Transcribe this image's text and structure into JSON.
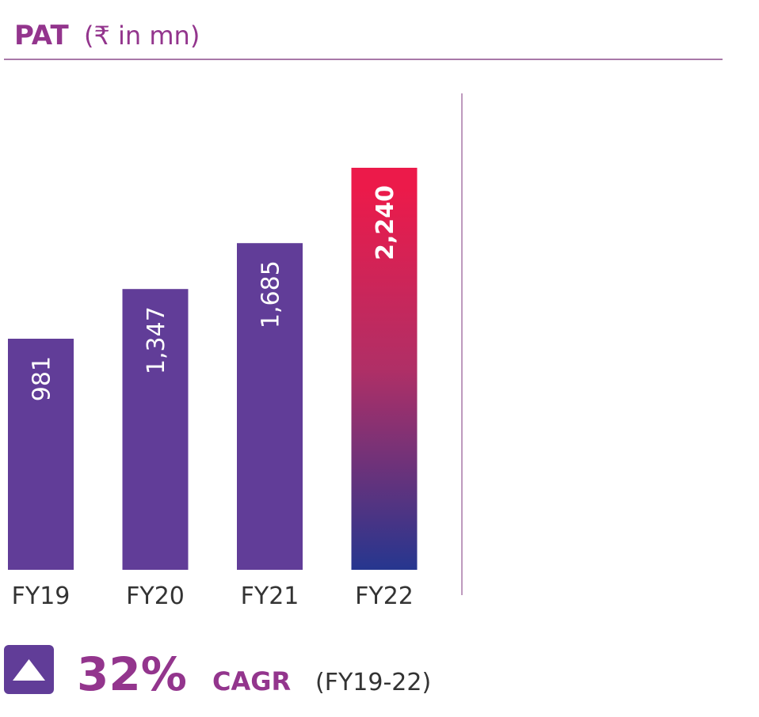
{
  "chart_data": {
    "type": "bar",
    "title": "PAT",
    "subtitle": "(₹ in mn)",
    "categories": [
      "FY19",
      "FY20",
      "FY21",
      "FY22"
    ],
    "values": [
      981,
      1347,
      1685,
      2240
    ],
    "value_labels": [
      "981",
      "1,347",
      "1,685",
      "2,240"
    ],
    "color": "#613d98",
    "highlight_gradient": [
      "#ec1a4a",
      "#26368f"
    ],
    "annotation": {
      "value": "32%",
      "label": "CAGR",
      "period": "(FY19-22)"
    }
  }
}
